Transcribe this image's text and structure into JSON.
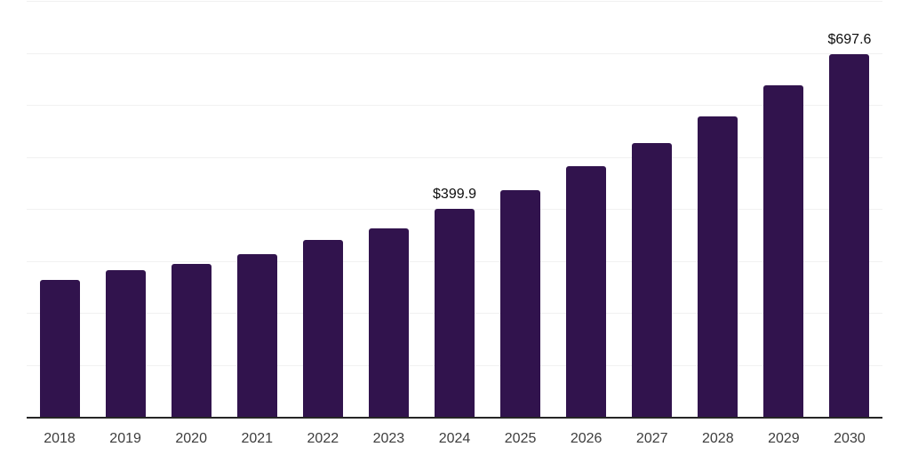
{
  "chart_data": {
    "type": "bar",
    "title": "",
    "xlabel": "",
    "ylabel": "",
    "categories": [
      "2018",
      "2019",
      "2020",
      "2021",
      "2022",
      "2023",
      "2024",
      "2025",
      "2026",
      "2027",
      "2028",
      "2029",
      "2030"
    ],
    "values": [
      264,
      283,
      294,
      313,
      341,
      363,
      399.9,
      437,
      482,
      527,
      578,
      637,
      697.6
    ],
    "data_labels": [
      {
        "category": "2024",
        "text": "$399.9"
      },
      {
        "category": "2030",
        "text": "$697.6"
      }
    ],
    "ylim": [
      0,
      800
    ],
    "gridline_step": 100,
    "grid": true,
    "legend_position": "none"
  },
  "colors": {
    "bar": "#31134d",
    "axis_line": "#262626",
    "gridline": "#f1f1f1",
    "tick_label": "#3d3d3d",
    "data_label": "#0d0d0d",
    "background": "#ffffff"
  }
}
